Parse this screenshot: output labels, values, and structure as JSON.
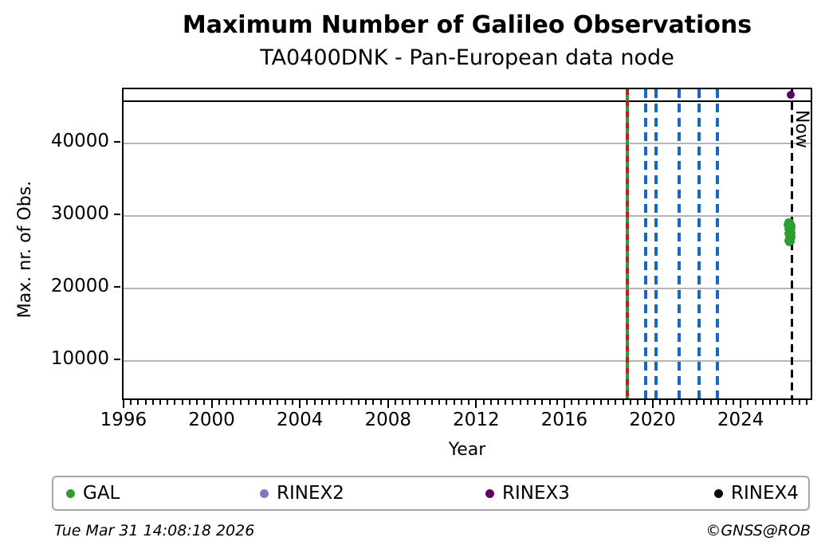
{
  "header": {
    "title": "Maximum Number of Galileo Observations",
    "subtitle": "TA0400DNK - Pan-European data node"
  },
  "footer": {
    "timestamp": "Tue Mar 31 14:08:18 2026",
    "credit": "©GNSS@ROB"
  },
  "legend": {
    "items": [
      {
        "label": "GAL",
        "color": "#2e9d33"
      },
      {
        "label": "RINEX2",
        "color": "#7e78bc"
      },
      {
        "label": "RINEX3",
        "color": "#5c0068"
      },
      {
        "label": "RINEX4",
        "color": "#140218"
      }
    ]
  },
  "chart_data": {
    "type": "scatter",
    "title": "Maximum Number of Galileo Observations",
    "subtitle": "TA0400DNK - Pan-European data node",
    "xlabel": "Year",
    "ylabel": "Max. nr. of Obs.",
    "xlim": [
      1995.93,
      2027.25
    ],
    "ylim": [
      4360,
      47440
    ],
    "xticks": [
      1996,
      2000,
      2004,
      2008,
      2012,
      2016,
      2020,
      2024
    ],
    "x_minor_step": 0.333333,
    "yticks": [
      10000,
      20000,
      30000,
      40000
    ],
    "grid": "horizontal-only",
    "grid_color": "#b5b5b5",
    "legend_position": "bottom",
    "reference_hline": {
      "value": 45800,
      "color": "#000000",
      "style": "solid"
    },
    "event_vlines": [
      {
        "year": 2018.8,
        "color": "green-with-red-dashes",
        "style": "solid+dashed"
      },
      {
        "year": 2019.62,
        "color": "#1668c4",
        "style": "dashed"
      },
      {
        "year": 2020.09,
        "color": "#1668c4",
        "style": "dashed"
      },
      {
        "year": 2021.13,
        "color": "#1668c4",
        "style": "dashed"
      },
      {
        "year": 2022.03,
        "color": "#1668c4",
        "style": "dashed"
      },
      {
        "year": 2022.88,
        "color": "#1668c4",
        "style": "dashed"
      }
    ],
    "now_marker": {
      "year": 2026.25,
      "label": "Now",
      "color": "#000000",
      "style": "dashed"
    },
    "series": [
      {
        "name": "GAL",
        "color": "#2e9d33",
        "points": [
          [
            2026.07,
            28800
          ],
          [
            2026.08,
            27500
          ],
          [
            2026.09,
            29050
          ],
          [
            2026.1,
            26600
          ],
          [
            2026.11,
            28200
          ],
          [
            2026.12,
            27000
          ],
          [
            2026.13,
            28950
          ],
          [
            2026.14,
            26350
          ],
          [
            2026.15,
            27800
          ],
          [
            2026.16,
            28550
          ],
          [
            2026.17,
            26800
          ],
          [
            2026.18,
            29100
          ],
          [
            2026.19,
            27300
          ],
          [
            2026.2,
            28050
          ],
          [
            2026.21,
            26500
          ],
          [
            2026.22,
            28700
          ],
          [
            2026.23,
            27150
          ],
          [
            2026.24,
            28350
          ],
          [
            2026.25,
            26950
          ],
          [
            2026.25,
            27650
          ]
        ]
      },
      {
        "name": "RINEX2",
        "color": "#7e78bc",
        "points": []
      },
      {
        "name": "RINEX3",
        "color": "#5c0068",
        "points": [
          [
            2026.2,
            46650
          ]
        ]
      },
      {
        "name": "RINEX4",
        "color": "#140218",
        "points": []
      }
    ]
  }
}
